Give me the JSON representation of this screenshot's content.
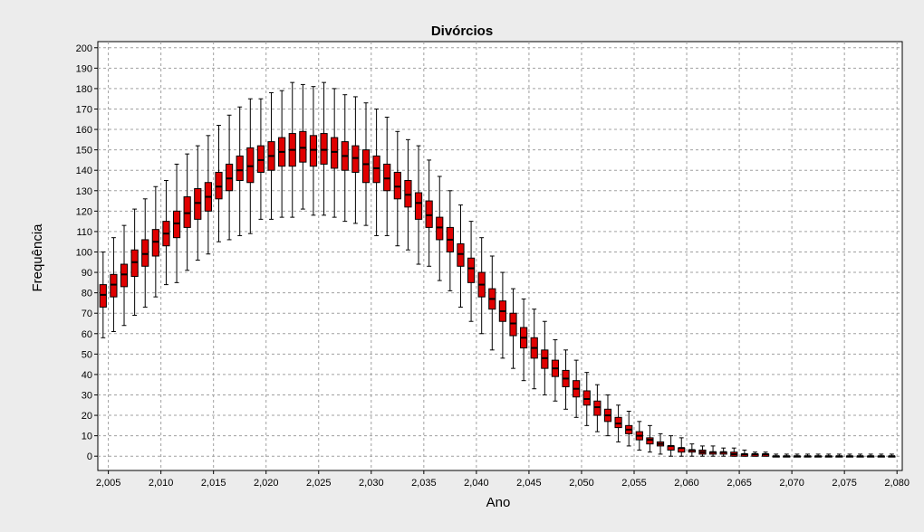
{
  "chart_data": {
    "type": "boxplot",
    "title": "Divórcios",
    "xlabel": "Ano",
    "ylabel": "Frequência",
    "xlim": [
      2004,
      2080.5
    ],
    "ylim": [
      -7,
      203
    ],
    "x_ticks": [
      2005,
      2010,
      2015,
      2020,
      2025,
      2030,
      2035,
      2040,
      2045,
      2050,
      2055,
      2060,
      2065,
      2070,
      2075,
      2080
    ],
    "x_tick_labels": [
      "2,005",
      "2,010",
      "2,015",
      "2,020",
      "2,025",
      "2,030",
      "2,035",
      "2,040",
      "2,045",
      "2,050",
      "2,055",
      "2,060",
      "2,065",
      "2,070",
      "2,075",
      "2,080"
    ],
    "y_ticks": [
      0,
      10,
      20,
      30,
      40,
      50,
      60,
      70,
      80,
      90,
      100,
      110,
      120,
      130,
      140,
      150,
      160,
      170,
      180,
      190,
      200
    ],
    "grid": true,
    "box_color": "#e00000",
    "x": [
      2004.5,
      2005.5,
      2006.5,
      2007.5,
      2008.5,
      2009.5,
      2010.5,
      2011.5,
      2012.5,
      2013.5,
      2014.5,
      2015.5,
      2016.5,
      2017.5,
      2018.5,
      2019.5,
      2020.5,
      2021.5,
      2022.5,
      2023.5,
      2024.5,
      2025.5,
      2026.5,
      2027.5,
      2028.5,
      2029.5,
      2030.5,
      2031.5,
      2032.5,
      2033.5,
      2034.5,
      2035.5,
      2036.5,
      2037.5,
      2038.5,
      2039.5,
      2040.5,
      2041.5,
      2042.5,
      2043.5,
      2044.5,
      2045.5,
      2046.5,
      2047.5,
      2048.5,
      2049.5,
      2050.5,
      2051.5,
      2052.5,
      2053.5,
      2054.5,
      2055.5,
      2056.5,
      2057.5,
      2058.5,
      2059.5,
      2060.5,
      2061.5,
      2062.5,
      2063.5,
      2064.5,
      2065.5,
      2066.5,
      2067.5,
      2068.5,
      2069.5,
      2070.5,
      2071.5,
      2072.5,
      2073.5,
      2074.5,
      2075.5,
      2076.5,
      2077.5,
      2078.5,
      2079.5
    ],
    "min": [
      58,
      61,
      64,
      69,
      73,
      78,
      84,
      85,
      91,
      96,
      99,
      105,
      106,
      108,
      109,
      116,
      116,
      117,
      117,
      121,
      118,
      118,
      117,
      115,
      114,
      113,
      108,
      108,
      103,
      101,
      94,
      93,
      86,
      81,
      73,
      66,
      60,
      52,
      48,
      43,
      37,
      33,
      30,
      27,
      23,
      19,
      15,
      12,
      10,
      7,
      5,
      3,
      2,
      1,
      0,
      0,
      0,
      0,
      0,
      0,
      0,
      0,
      0,
      0,
      0,
      0,
      0,
      0,
      0,
      0,
      0,
      0,
      0,
      0,
      0,
      0
    ],
    "q1": [
      73,
      78,
      83,
      88,
      93,
      98,
      103,
      107,
      112,
      116,
      120,
      126,
      130,
      135,
      134,
      139,
      140,
      142,
      142,
      144,
      142,
      143,
      141,
      140,
      139,
      134,
      134,
      130,
      126,
      122,
      116,
      112,
      106,
      100,
      93,
      85,
      78,
      72,
      66,
      59,
      53,
      48,
      43,
      39,
      34,
      29,
      25,
      20,
      17,
      14,
      11,
      8,
      6,
      5,
      3,
      2,
      2,
      1,
      1,
      1,
      0,
      0,
      0,
      0,
      0,
      0,
      0,
      0,
      0,
      0,
      0,
      0,
      0,
      0,
      0,
      0
    ],
    "median": [
      79,
      84,
      89,
      95,
      99,
      105,
      109,
      114,
      119,
      124,
      127,
      132,
      136,
      140,
      142,
      145,
      147,
      149,
      150,
      151,
      150,
      150,
      149,
      147,
      146,
      143,
      141,
      136,
      132,
      128,
      124,
      118,
      112,
      106,
      99,
      92,
      84,
      77,
      71,
      65,
      58,
      53,
      48,
      43,
      38,
      33,
      28,
      24,
      20,
      16,
      13,
      10,
      8,
      6,
      5,
      4,
      3,
      2,
      2,
      2,
      1,
      1,
      1,
      1,
      0,
      0,
      0,
      0,
      0,
      0,
      0,
      0,
      0,
      0,
      0,
      0
    ],
    "q3": [
      84,
      89,
      94,
      101,
      106,
      111,
      115,
      120,
      127,
      131,
      134,
      139,
      143,
      147,
      151,
      152,
      154,
      156,
      158,
      159,
      157,
      158,
      156,
      154,
      152,
      150,
      147,
      143,
      139,
      135,
      129,
      125,
      117,
      112,
      104,
      97,
      90,
      82,
      76,
      70,
      63,
      58,
      52,
      47,
      42,
      37,
      32,
      27,
      23,
      19,
      15,
      12,
      9,
      7,
      5,
      4,
      3,
      3,
      2,
      2,
      2,
      1,
      1,
      1,
      0,
      0,
      0,
      0,
      0,
      0,
      0,
      0,
      0,
      0,
      0,
      0
    ],
    "max": [
      100,
      107,
      113,
      121,
      126,
      132,
      135,
      143,
      148,
      152,
      157,
      162,
      167,
      171,
      175,
      175,
      178,
      179,
      183,
      182,
      181,
      183,
      180,
      177,
      176,
      173,
      170,
      166,
      159,
      155,
      152,
      145,
      137,
      130,
      123,
      115,
      107,
      98,
      90,
      82,
      77,
      72,
      66,
      57,
      52,
      47,
      41,
      35,
      30,
      25,
      22,
      17,
      15,
      11,
      10,
      9,
      6,
      5,
      5,
      4,
      4,
      3,
      2,
      2,
      1,
      1,
      1,
      1,
      1,
      1,
      1,
      1,
      1,
      1,
      1,
      1
    ]
  }
}
